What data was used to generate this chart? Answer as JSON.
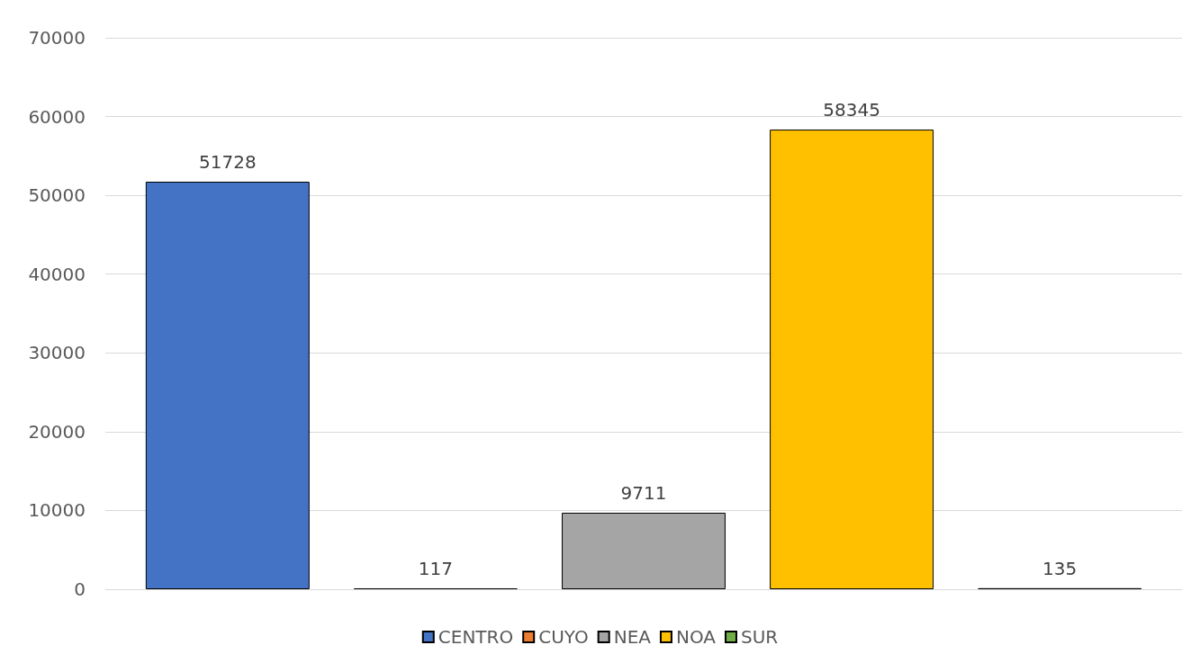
{
  "chart_data": {
    "type": "bar",
    "categories": [
      null
    ],
    "series": [
      {
        "name": "CENTRO",
        "color": "#4472c4",
        "values": [
          51728
        ]
      },
      {
        "name": "CUYO",
        "color": "#ed7d31",
        "values": [
          117
        ]
      },
      {
        "name": "NEA",
        "color": "#a5a5a5",
        "values": [
          9711
        ]
      },
      {
        "name": "NOA",
        "color": "#ffc000",
        "values": [
          58345
        ]
      },
      {
        "name": "SUR",
        "color": "#70ad47",
        "values": [
          135
        ]
      }
    ],
    "ylim": [
      0,
      70000
    ],
    "yticks": [
      0,
      10000,
      20000,
      30000,
      40000,
      50000,
      60000,
      70000
    ],
    "grid": "y",
    "legend": "bottom",
    "data_labels": true
  }
}
